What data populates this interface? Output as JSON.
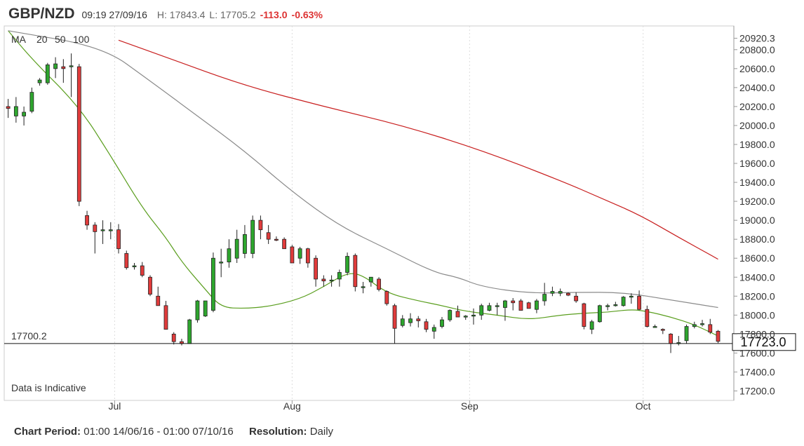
{
  "header": {
    "symbol": "GBP/NZD",
    "datetime": "09:19 27/09/16",
    "high": "H: 17843.4",
    "low": "L: 17705.2",
    "change": "-113.0",
    "change_pct": "-0.63%"
  },
  "footer": {
    "period_label": "Chart Period:",
    "period_value": "01:00 14/06/16 - 01:00 07/10/16",
    "resolution_label": "Resolution:",
    "resolution_value": "Daily"
  },
  "colors": {
    "up": "#2ea62e",
    "down": "#e03b3b",
    "ma20": "#5a9e1e",
    "ma50": "#8a8a8a",
    "ma100": "#c81e1e",
    "grid": "#dddddd"
  },
  "chart_data": {
    "type": "candlestick",
    "annotation": "Data is Indicative",
    "legend": {
      "prefix": "MA",
      "items": [
        "20",
        "50",
        "100"
      ]
    },
    "ylim": [
      17100,
      21050
    ],
    "y_ticks": [
      "20920.3",
      "20800.0",
      "20600.0",
      "20400.0",
      "20200.0",
      "20000.0",
      "19800.0",
      "19600.0",
      "19400.0",
      "19200.0",
      "19000.0",
      "18800.0",
      "18600.0",
      "18400.0",
      "18200.0",
      "18000.0",
      "17800.0",
      "17600.0",
      "17400.0",
      "17200.0"
    ],
    "y_tick_values": [
      20920.3,
      20800,
      20600,
      20400,
      20200,
      20000,
      19800,
      19600,
      19400,
      19200,
      19000,
      18800,
      18600,
      18400,
      18200,
      18000,
      17800,
      17600,
      17400,
      17200
    ],
    "x_labels": [
      "Jul",
      "Aug",
      "Sep",
      "Oct"
    ],
    "x_label_index": [
      13.5,
      36,
      58.5,
      80.5
    ],
    "x_range": [
      -0.5,
      92
    ],
    "reference_line": {
      "value": 17700.2,
      "label": "17700.2"
    },
    "current_price": {
      "value": 17723.0,
      "label": "17723.0"
    },
    "candles": [
      {
        "o": 20200,
        "h": 20280,
        "l": 20080,
        "c": 20180
      },
      {
        "o": 20100,
        "h": 20300,
        "l": 20030,
        "c": 20200
      },
      {
        "o": 20100,
        "h": 20200,
        "l": 20000,
        "c": 20140
      },
      {
        "o": 20150,
        "h": 20400,
        "l": 20130,
        "c": 20350
      },
      {
        "o": 20450,
        "h": 20500,
        "l": 20420,
        "c": 20480
      },
      {
        "o": 20450,
        "h": 20660,
        "l": 20430,
        "c": 20640
      },
      {
        "o": 20600,
        "h": 20720,
        "l": 20500,
        "c": 20650
      },
      {
        "o": 20620,
        "h": 20700,
        "l": 20450,
        "c": 20600
      },
      {
        "o": 20620,
        "h": 20760,
        "l": 20300,
        "c": 20630
      },
      {
        "o": 20620,
        "h": 20650,
        "l": 19150,
        "c": 19200
      },
      {
        "o": 19050,
        "h": 19100,
        "l": 18900,
        "c": 18950
      },
      {
        "o": 18950,
        "h": 18980,
        "l": 18650,
        "c": 18880
      },
      {
        "o": 18900,
        "h": 19000,
        "l": 18750,
        "c": 18900
      },
      {
        "o": 18900,
        "h": 18980,
        "l": 18800,
        "c": 18900
      },
      {
        "o": 18900,
        "h": 18960,
        "l": 18650,
        "c": 18700
      },
      {
        "o": 18650,
        "h": 18680,
        "l": 18480,
        "c": 18500
      },
      {
        "o": 18520,
        "h": 18550,
        "l": 18480,
        "c": 18520
      },
      {
        "o": 18520,
        "h": 18560,
        "l": 18400,
        "c": 18420
      },
      {
        "o": 18400,
        "h": 18420,
        "l": 18200,
        "c": 18220
      },
      {
        "o": 18200,
        "h": 18300,
        "l": 18100,
        "c": 18100
      },
      {
        "o": 18100,
        "h": 18150,
        "l": 17850,
        "c": 17850
      },
      {
        "o": 17800,
        "h": 17820,
        "l": 17690,
        "c": 17720
      },
      {
        "o": 17720,
        "h": 17750,
        "l": 17680,
        "c": 17700
      },
      {
        "o": 17700,
        "h": 17960,
        "l": 17700,
        "c": 17950
      },
      {
        "o": 17950,
        "h": 18160,
        "l": 17920,
        "c": 18150
      },
      {
        "o": 17990,
        "h": 18150,
        "l": 17980,
        "c": 18150
      },
      {
        "o": 18050,
        "h": 18660,
        "l": 18030,
        "c": 18600
      },
      {
        "o": 18560,
        "h": 18700,
        "l": 18400,
        "c": 18560
      },
      {
        "o": 18560,
        "h": 18800,
        "l": 18500,
        "c": 18700
      },
      {
        "o": 18600,
        "h": 18900,
        "l": 18550,
        "c": 18800
      },
      {
        "o": 18650,
        "h": 18950,
        "l": 18600,
        "c": 18850
      },
      {
        "o": 18650,
        "h": 19050,
        "l": 18600,
        "c": 19000
      },
      {
        "o": 19000,
        "h": 19050,
        "l": 18800,
        "c": 18900
      },
      {
        "o": 18870,
        "h": 18950,
        "l": 18750,
        "c": 18800
      },
      {
        "o": 18800,
        "h": 18830,
        "l": 18780,
        "c": 18790
      },
      {
        "o": 18800,
        "h": 18820,
        "l": 18700,
        "c": 18700
      },
      {
        "o": 18720,
        "h": 18740,
        "l": 18550,
        "c": 18550
      },
      {
        "o": 18600,
        "h": 18720,
        "l": 18540,
        "c": 18700
      },
      {
        "o": 18700,
        "h": 18710,
        "l": 18500,
        "c": 18550
      },
      {
        "o": 18600,
        "h": 18630,
        "l": 18300,
        "c": 18380
      },
      {
        "o": 18380,
        "h": 18420,
        "l": 18300,
        "c": 18360
      },
      {
        "o": 18370,
        "h": 18420,
        "l": 18300,
        "c": 18370
      },
      {
        "o": 18380,
        "h": 18480,
        "l": 18300,
        "c": 18450
      },
      {
        "o": 18450,
        "h": 18660,
        "l": 18420,
        "c": 18620
      },
      {
        "o": 18630,
        "h": 18650,
        "l": 18250,
        "c": 18300
      },
      {
        "o": 18300,
        "h": 18350,
        "l": 18230,
        "c": 18300
      },
      {
        "o": 18350,
        "h": 18400,
        "l": 18300,
        "c": 18400
      },
      {
        "o": 18380,
        "h": 18400,
        "l": 18250,
        "c": 18270
      },
      {
        "o": 18250,
        "h": 18260,
        "l": 18100,
        "c": 18120
      },
      {
        "o": 18100,
        "h": 18120,
        "l": 17700,
        "c": 17860
      },
      {
        "o": 17890,
        "h": 18000,
        "l": 17870,
        "c": 17960
      },
      {
        "o": 17920,
        "h": 18020,
        "l": 17880,
        "c": 17960
      },
      {
        "o": 17960,
        "h": 17990,
        "l": 17870,
        "c": 17940
      },
      {
        "o": 17930,
        "h": 17960,
        "l": 17820,
        "c": 17850
      },
      {
        "o": 17830,
        "h": 17900,
        "l": 17750,
        "c": 17870
      },
      {
        "o": 17880,
        "h": 17980,
        "l": 17860,
        "c": 17950
      },
      {
        "o": 17950,
        "h": 18060,
        "l": 17930,
        "c": 18050
      },
      {
        "o": 18040,
        "h": 18100,
        "l": 17980,
        "c": 17980
      },
      {
        "o": 17980,
        "h": 18000,
        "l": 17950,
        "c": 17990
      },
      {
        "o": 17990,
        "h": 18070,
        "l": 17900,
        "c": 18000
      },
      {
        "o": 18000,
        "h": 18120,
        "l": 17950,
        "c": 18100
      },
      {
        "o": 18050,
        "h": 18130,
        "l": 18040,
        "c": 18100
      },
      {
        "o": 18100,
        "h": 18130,
        "l": 18000,
        "c": 18100
      },
      {
        "o": 18080,
        "h": 18160,
        "l": 17940,
        "c": 18150
      },
      {
        "o": 18150,
        "h": 18180,
        "l": 18050,
        "c": 18130
      },
      {
        "o": 18150,
        "h": 18170,
        "l": 18050,
        "c": 18050
      },
      {
        "o": 18130,
        "h": 18140,
        "l": 18070,
        "c": 18070
      },
      {
        "o": 18060,
        "h": 18170,
        "l": 18020,
        "c": 18150
      },
      {
        "o": 18150,
        "h": 18340,
        "l": 18100,
        "c": 18220
      },
      {
        "o": 18230,
        "h": 18300,
        "l": 18200,
        "c": 18250
      },
      {
        "o": 18230,
        "h": 18280,
        "l": 18200,
        "c": 18250
      },
      {
        "o": 18230,
        "h": 18240,
        "l": 18200,
        "c": 18210
      },
      {
        "o": 18200,
        "h": 18240,
        "l": 18130,
        "c": 18150
      },
      {
        "o": 18120,
        "h": 18130,
        "l": 17850,
        "c": 17880
      },
      {
        "o": 17850,
        "h": 17950,
        "l": 17800,
        "c": 17930
      },
      {
        "o": 17930,
        "h": 18110,
        "l": 17920,
        "c": 18100
      },
      {
        "o": 18100,
        "h": 18120,
        "l": 18050,
        "c": 18100
      },
      {
        "o": 18100,
        "h": 18140,
        "l": 18090,
        "c": 18110
      },
      {
        "o": 18100,
        "h": 18200,
        "l": 18090,
        "c": 18190
      },
      {
        "o": 18200,
        "h": 18230,
        "l": 18120,
        "c": 18200
      },
      {
        "o": 18200,
        "h": 18260,
        "l": 18050,
        "c": 18060
      },
      {
        "o": 18060,
        "h": 18100,
        "l": 17870,
        "c": 17880
      },
      {
        "o": 17880,
        "h": 17900,
        "l": 17870,
        "c": 17880
      },
      {
        "o": 17850,
        "h": 17860,
        "l": 17800,
        "c": 17840
      },
      {
        "o": 17800,
        "h": 17810,
        "l": 17600,
        "c": 17700
      },
      {
        "o": 17700,
        "h": 17780,
        "l": 17680,
        "c": 17710
      },
      {
        "o": 17730,
        "h": 17900,
        "l": 17700,
        "c": 17880
      },
      {
        "o": 17880,
        "h": 17930,
        "l": 17860,
        "c": 17900
      },
      {
        "o": 17900,
        "h": 17950,
        "l": 17880,
        "c": 17910
      },
      {
        "o": 17900,
        "h": 17960,
        "l": 17800,
        "c": 17820
      },
      {
        "o": 17830,
        "h": 17843,
        "l": 17705,
        "c": 17723
      }
    ],
    "series": [
      {
        "name": "20",
        "index": [
          0,
          3,
          9,
          13,
          17,
          20,
          22,
          25,
          27,
          30,
          33,
          37,
          40,
          43,
          45,
          48,
          52,
          55,
          58,
          62,
          66,
          70,
          73,
          76,
          79,
          81,
          84,
          87,
          90
        ],
        "values": [
          21000,
          20700,
          20200,
          19680,
          19130,
          18820,
          18560,
          18270,
          18080,
          18070,
          18090,
          18170,
          18300,
          18450,
          18420,
          18230,
          18150,
          18100,
          18040,
          18000,
          17950,
          18000,
          18020,
          18030,
          18060,
          18040,
          17980,
          17900,
          17780
        ]
      },
      {
        "name": "50",
        "index": [
          0,
          12,
          18,
          24,
          30,
          36,
          42,
          48,
          54,
          57,
          60,
          66,
          72,
          78,
          84,
          90
        ],
        "values": [
          21000,
          20830,
          20470,
          20100,
          19730,
          19300,
          18940,
          18700,
          18450,
          18400,
          18300,
          18230,
          18240,
          18240,
          18160,
          18080
        ]
      },
      {
        "name": "100",
        "index": [
          14,
          20,
          30,
          40,
          50,
          60,
          70,
          75,
          80,
          85,
          90
        ],
        "values": [
          20900,
          20720,
          20420,
          20200,
          20000,
          19740,
          19420,
          19240,
          19060,
          18820,
          18590
        ]
      }
    ]
  }
}
